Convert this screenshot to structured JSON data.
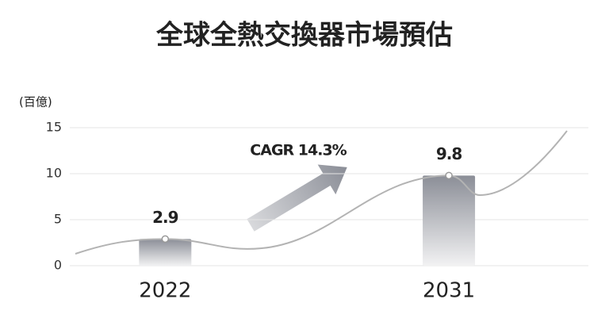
{
  "chart_data": {
    "type": "bar",
    "title": "全球全熱交換器市場預估",
    "y_label": "(百億)",
    "annotation": "CAGR 14.3%",
    "categories": [
      "2022",
      "2031"
    ],
    "values": [
      2.9,
      9.8
    ],
    "color": "#8b8e97",
    "ylim": [
      0,
      15
    ],
    "yticks": [
      0,
      5,
      10,
      15
    ],
    "grid": true
  }
}
